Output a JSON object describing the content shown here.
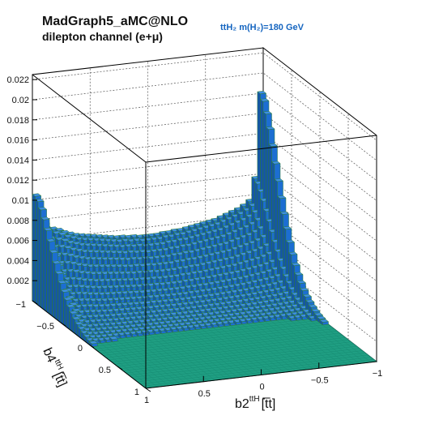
{
  "chart_data": {
    "type": "lego3d",
    "title": "MadGraph5_aMC@NLO",
    "subtitle": "dilepton channel (e+μ)",
    "annotation": "ttH₂ m(H₂)=180 GeV",
    "xlabel": "b2",
    "xlabel_sup": "ttH",
    "xlabel_suffix": "[t̅t]",
    "ylabel": "b4",
    "ylabel_sup": "ttH",
    "ylabel_suffix": "[t̅t]",
    "xlim": [
      -1,
      1
    ],
    "ylim": [
      -1,
      1
    ],
    "zlim": [
      0,
      0.0225
    ],
    "x_tick_labels": [
      "1",
      "0.5",
      "0",
      "−0.5",
      "−1"
    ],
    "x_tick_values": [
      1,
      0.5,
      0,
      -0.5,
      -1
    ],
    "y_tick_labels": [
      "−1",
      "−0.5",
      "0",
      "0.5",
      "1"
    ],
    "y_tick_values": [
      -1,
      -0.5,
      0,
      0.5,
      1
    ],
    "z_tick_labels": [
      "0.002",
      "0.004",
      "0.006",
      "0.008",
      "0.01",
      "0.012",
      "0.014",
      "0.016",
      "0.018",
      "0.02",
      "0.022"
    ],
    "z_tick_values": [
      0.002,
      0.004,
      0.006,
      0.008,
      0.01,
      0.012,
      0.014,
      0.016,
      0.018,
      0.02,
      0.022
    ],
    "grid": true,
    "bins_x": 40,
    "bins_y": 40,
    "back_row_b4": 1.0,
    "back_row_b2": [
      1.0,
      0.95,
      0.9,
      0.85,
      0.8,
      0.75,
      0.7,
      0.65,
      0.6,
      0.55,
      0.5,
      0.45,
      0.4,
      0.35,
      0.3,
      0.25,
      0.2,
      0.15,
      0.1,
      0.05,
      0.0,
      -0.05,
      -0.1,
      -0.15,
      -0.2,
      -0.25,
      -0.3,
      -0.35,
      -0.4,
      -0.45,
      -0.5,
      -0.55,
      -0.6,
      -0.65,
      -0.7,
      -0.75,
      -0.8,
      -0.85,
      -0.9,
      -0.95
    ],
    "back_row_values": [
      0.0106,
      0.0083,
      0.0072,
      0.0071,
      0.0069,
      0.0066,
      0.0064,
      0.0062,
      0.0061,
      0.006,
      0.0059,
      0.0058,
      0.0057,
      0.0056,
      0.0055,
      0.0055,
      0.0054,
      0.0054,
      0.0053,
      0.0053,
      0.0053,
      0.0053,
      0.0054,
      0.0054,
      0.0055,
      0.0055,
      0.0056,
      0.0057,
      0.0058,
      0.0059,
      0.006,
      0.0061,
      0.0063,
      0.0065,
      0.0067,
      0.0069,
      0.0072,
      0.0076,
      0.0098,
      0.0182
    ],
    "colors": {
      "bars": "#1c6ed2",
      "bar_side": "#1556a6",
      "floor": "#1f9e82",
      "edge": "#2e7d32"
    }
  }
}
